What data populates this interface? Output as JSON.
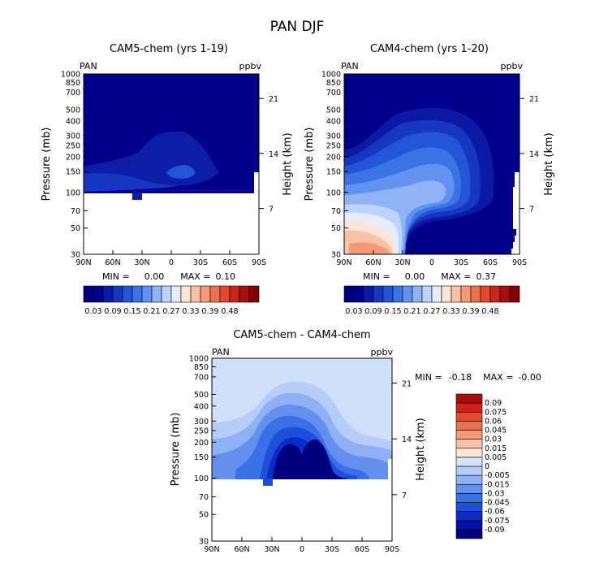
{
  "figure_title": "PAN DJF",
  "colors": {
    "seq": [
      "#00007f",
      "#00008f",
      "#0a1aa4",
      "#1737c2",
      "#2455d6",
      "#3c74e6",
      "#6292ef",
      "#8fb3f5",
      "#bcd3fa",
      "#e6eefc",
      "#fde6d8",
      "#f8c2a6",
      "#f39a78",
      "#ec7150",
      "#e14a32",
      "#cc2418",
      "#a80f0c",
      "#7f0000"
    ],
    "diff": [
      "#00007f",
      "#0010a8",
      "#0a2dc4",
      "#1e4fd9",
      "#3a6fe6",
      "#6390ef",
      "#8eb0f5",
      "#b6cdf8",
      "#d4e3fb",
      "#fde6d8",
      "#f8c2a6",
      "#f39a78",
      "#ec7150",
      "#e14a32",
      "#cc2418",
      "#a80f0c"
    ]
  },
  "chart_data": [
    {
      "type": "contour",
      "title": "CAM5-chem (yrs 1-19)",
      "field_label": "PAN",
      "units": "ppbv",
      "ylabel": "Pressure (mb)",
      "y2label": "Height (km)",
      "pressure_ticks": [
        30,
        50,
        70,
        100,
        150,
        200,
        250,
        300,
        400,
        500,
        700,
        850,
        1000
      ],
      "height_ticks": [
        "21",
        "14",
        "7"
      ],
      "lat_ticks": [
        "90N",
        "60N",
        "30N",
        "0",
        "30S",
        "60S",
        "90S"
      ],
      "ylim_mb": [
        1000,
        30
      ],
      "min_label": "MIN =",
      "min_value": "0.00",
      "max_label": "MAX =",
      "max_value": "0.10",
      "colorbar_labels": [
        "0.03",
        "0.09",
        "0.15",
        "0.21",
        "0.27",
        "0.33",
        "0.39",
        "0.48"
      ]
    },
    {
      "type": "contour",
      "title": "CAM4-chem (yrs 1-20)",
      "field_label": "PAN",
      "units": "ppbv",
      "ylabel": "Pressure (mb)",
      "y2label": "Height (km)",
      "pressure_ticks": [
        30,
        50,
        70,
        100,
        150,
        200,
        250,
        300,
        400,
        500,
        700,
        850,
        1000
      ],
      "height_ticks": [
        "21",
        "14",
        "7"
      ],
      "lat_ticks": [
        "90N",
        "60N",
        "30N",
        "0",
        "30S",
        "60S",
        "90S"
      ],
      "ylim_mb": [
        1000,
        30
      ],
      "min_label": "MIN =",
      "min_value": "0.00",
      "max_label": "MAX =",
      "max_value": "0.37",
      "colorbar_labels": [
        "0.03",
        "0.09",
        "0.15",
        "0.21",
        "0.27",
        "0.33",
        "0.39",
        "0.48"
      ]
    },
    {
      "type": "contour",
      "title": "CAM5-chem - CAM4-chem",
      "field_label": "PAN",
      "units": "ppbv",
      "ylabel": "Pressure (mb)",
      "y2label": "Height (km)",
      "pressure_ticks": [
        30,
        50,
        70,
        100,
        150,
        200,
        250,
        300,
        400,
        500,
        700,
        850,
        1000
      ],
      "height_ticks": [
        "21",
        "14",
        "7"
      ],
      "lat_ticks": [
        "90N",
        "60N",
        "30N",
        "0",
        "30S",
        "60S",
        "90S"
      ],
      "ylim_mb": [
        1000,
        30
      ],
      "min_label": "MIN =",
      "min_value": "-0.18",
      "max_label": "MAX =",
      "max_value": "-0.00",
      "colorbar_labels": [
        "0.09",
        "0.075",
        "0.06",
        "0.045",
        "0.03",
        "0.015",
        "0.005",
        "0",
        "-0.005",
        "-0.015",
        "-0.03",
        "-0.045",
        "-0.06",
        "-0.075",
        "-0.09"
      ]
    }
  ]
}
